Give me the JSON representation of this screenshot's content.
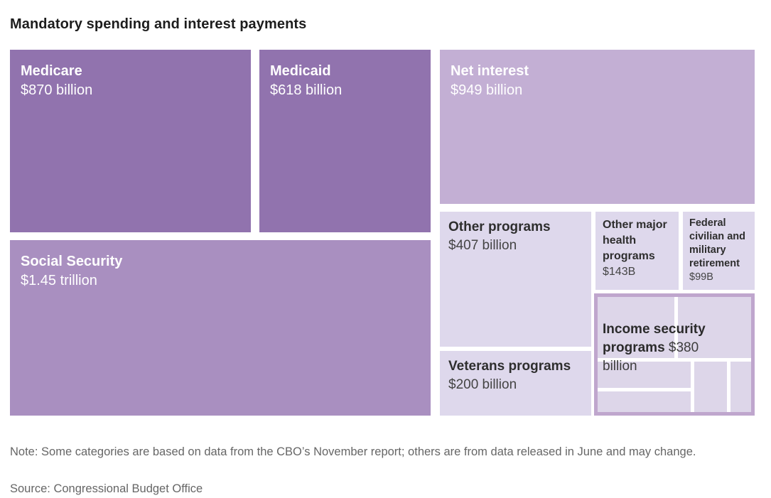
{
  "page": {
    "title": "Mandatory spending and interest payments",
    "note": "Note: Some categories are based on data from the CBO’s November report; others are from data released in June and may change.",
    "source": "Source: Congressional Budget Office"
  },
  "colors": {
    "tile_dark_purple": "#9173ae",
    "tile_medium_purple": "#a98fc0",
    "tile_light_purple": "#c3afd4",
    "tile_pale_lavender": "#ded8ec",
    "income_subtile": "#ddd6e9",
    "income_group_border": "#bfa6cd",
    "text_on_dark": "#ffffff",
    "text_on_light": "#2e2e2e",
    "footer_text": "#666666",
    "title_text": "#1d1d1d"
  },
  "chart_data": {
    "type": "treemap",
    "title": "Mandatory spending and interest payments",
    "unit": "U.S. dollars, billions",
    "legend_position": "none",
    "tiles": {
      "medicare": {
        "label": "Medicare",
        "value": "$870 billion",
        "amount_billions": 870,
        "color": "#9173ae"
      },
      "medicaid": {
        "label": "Medicaid",
        "value": "$618 billion",
        "amount_billions": 618,
        "color": "#9173ae"
      },
      "social_security": {
        "label": "Social Security",
        "value": "$1.45 trillion",
        "amount_billions": 1450,
        "color": "#a98fc0"
      },
      "net_interest": {
        "label": "Net interest",
        "value": "$949 billion",
        "amount_billions": 949,
        "color": "#c3afd4"
      },
      "other_programs": {
        "label": "Other programs",
        "value": "$407 billion",
        "amount_billions": 407,
        "color": "#ded8ec"
      },
      "other_major_health": {
        "label": "Other major health programs",
        "value": "$143B",
        "amount_billions": 143,
        "color": "#ded8ec"
      },
      "federal_retirement": {
        "label": "Federal civilian and military retirement",
        "value": "$99B",
        "amount_billions": 99,
        "color": "#ded8ec"
      },
      "income_security": {
        "label": "Income security programs",
        "value": "$380 billion",
        "amount_billions": 380,
        "color": "#ddd6e9",
        "has_unlabeled_subtiles": true,
        "subtile_count": 6
      },
      "veterans": {
        "label": "Veterans programs",
        "value": "$200 billion",
        "amount_billions": 200,
        "color": "#ded8ec"
      }
    }
  }
}
